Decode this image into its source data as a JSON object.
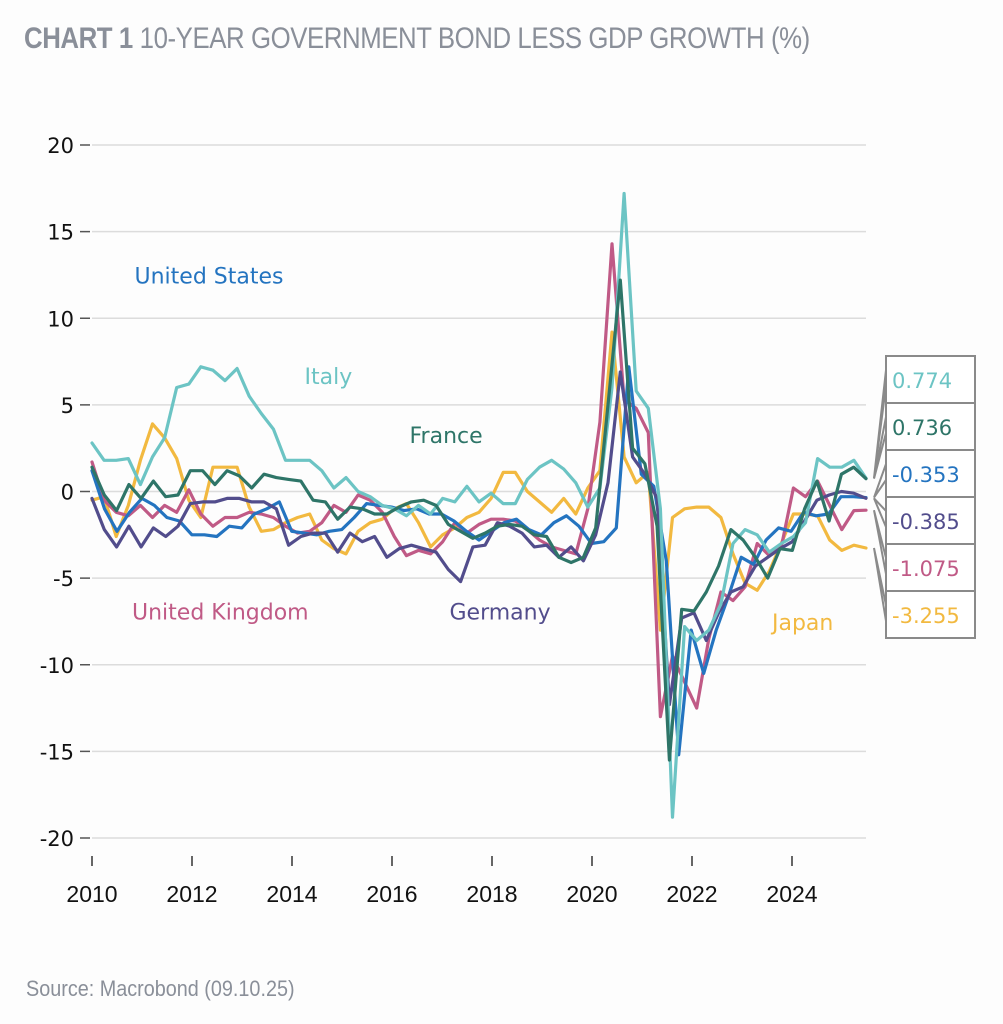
{
  "header": {
    "lead": "CHART 1",
    "title": "10-YEAR GOVERNMENT BOND LESS GDP GROWTH (%)"
  },
  "footer": {
    "source": "Source: Macrobond (09.10.25)"
  },
  "chart_data": {
    "type": "line",
    "title": "CHART 1 10-YEAR GOVERNMENT BOND LESS GDP GROWTH (%)",
    "xlabel": "",
    "ylabel": "%",
    "frequency": "quarterly",
    "x_start": 2010.0,
    "x_step": 0.25,
    "xlim": [
      2010,
      2025.5
    ],
    "ylim": [
      -20,
      20
    ],
    "yticks": [
      20,
      15,
      10,
      5,
      0,
      -5,
      -10,
      -15,
      -20
    ],
    "xticks": [
      2010,
      2012,
      2014,
      2016,
      2018,
      2020,
      2022,
      2024
    ],
    "grid": "horizontal",
    "series": [
      {
        "name": "Italy",
        "color": "#6cc4c4",
        "end_value": "0.774",
        "values": [
          2.8,
          1.8,
          1.8,
          1.9,
          0.4,
          2.0,
          3.1,
          6.0,
          6.2,
          7.2,
          7.0,
          6.4,
          7.1,
          5.5,
          4.5,
          3.6,
          1.8,
          1.8,
          1.8,
          1.2,
          0.2,
          0.8,
          0.0,
          -0.3,
          -0.8,
          -1.0,
          -1.4,
          -0.8,
          -1.3,
          -0.4,
          -0.6,
          0.3,
          -0.6,
          -0.1,
          -0.7,
          -0.7,
          0.7,
          1.4,
          1.8,
          1.3,
          0.5,
          -0.9,
          0.2,
          6.0,
          17.2,
          5.8,
          4.8,
          -1.0,
          -18.8,
          -7.8,
          -8.6,
          -8.0,
          -6.5,
          -3.0,
          -2.2,
          -2.5,
          -3.5,
          -3.0,
          -2.6,
          -1.8,
          1.9,
          1.4,
          1.4,
          1.8,
          0.77
        ]
      },
      {
        "name": "France",
        "color": "#2e7568",
        "end_value": "0.736",
        "values": [
          1.4,
          -0.2,
          -1.1,
          0.4,
          -0.4,
          0.6,
          -0.3,
          -0.2,
          1.2,
          1.2,
          0.4,
          1.2,
          0.9,
          0.2,
          1.0,
          0.8,
          0.7,
          0.6,
          -0.5,
          -0.6,
          -1.6,
          -0.9,
          -1.0,
          -1.3,
          -1.3,
          -0.9,
          -0.6,
          -0.5,
          -0.8,
          -1.9,
          -2.3,
          -2.7,
          -2.4,
          -2.0,
          -1.9,
          -2.0,
          -2.5,
          -2.6,
          -3.8,
          -4.1,
          -3.8,
          -2.1,
          5.0,
          12.2,
          2.5,
          1.6,
          -2.0,
          -15.5,
          -6.8,
          -6.9,
          -5.8,
          -4.3,
          -2.2,
          -2.8,
          -3.8,
          -5.0,
          -3.3,
          -3.4,
          -1.0,
          0.6,
          -1.7,
          1.0,
          1.4,
          0.74
        ]
      },
      {
        "name": "United States",
        "color": "#2474c0",
        "end_value": "-0.353",
        "values": [
          1.2,
          -1.0,
          -2.3,
          -1.2,
          -0.4,
          -0.8,
          -1.5,
          -1.7,
          -2.5,
          -2.5,
          -2.6,
          -2.0,
          -2.1,
          -1.3,
          -1.0,
          -0.6,
          -2.3,
          -2.4,
          -2.5,
          -2.3,
          -2.2,
          -1.5,
          -0.7,
          -0.8,
          -0.9,
          -1.1,
          -1.0,
          -1.3,
          -1.3,
          -1.7,
          -2.3,
          -2.8,
          -2.3,
          -1.8,
          -1.6,
          -2.2,
          -2.5,
          -1.8,
          -1.4,
          -2.0,
          -3.0,
          -2.9,
          -2.1,
          7.2,
          1.0,
          0.3,
          -4.0,
          -15.2,
          -8.0,
          -10.5,
          -8.0,
          -6.0,
          -3.8,
          -4.2,
          -2.8,
          -2.1,
          -2.3,
          -1.2,
          -1.4,
          -1.3,
          -0.3,
          -0.3,
          -0.35
        ]
      },
      {
        "name": "Germany",
        "color": "#524d8c",
        "end_value": "-0.385",
        "values": [
          -0.4,
          -2.2,
          -3.2,
          -2.0,
          -3.2,
          -2.1,
          -2.6,
          -2.0,
          -0.7,
          -0.6,
          -0.6,
          -0.4,
          -0.4,
          -0.6,
          -0.6,
          -1.0,
          -3.1,
          -2.6,
          -2.4,
          -2.4,
          -3.5,
          -2.4,
          -2.9,
          -2.6,
          -3.8,
          -3.3,
          -3.1,
          -3.3,
          -3.5,
          -4.5,
          -5.2,
          -3.2,
          -3.1,
          -1.8,
          -2.0,
          -2.4,
          -3.2,
          -3.1,
          -3.8,
          -3.2,
          -4.0,
          -2.5,
          0.5,
          6.9,
          2.0,
          1.0,
          -0.4,
          -12.3,
          -7.3,
          -7.0,
          -8.6,
          -7.0,
          -5.8,
          -5.5,
          -4.3,
          -3.8,
          -3.3,
          -2.9,
          -1.7,
          -0.5,
          -0.2,
          0.0,
          -0.1,
          -0.39
        ]
      },
      {
        "name": "United Kingdom",
        "color": "#c05a86",
        "end_value": "-1.075",
        "values": [
          1.7,
          -0.5,
          -1.2,
          -1.4,
          -0.8,
          -1.5,
          -0.8,
          -1.2,
          0.1,
          -1.3,
          -2.0,
          -1.5,
          -1.5,
          -1.2,
          -1.3,
          -1.5,
          -2.0,
          -2.4,
          -2.3,
          -1.8,
          -0.8,
          -1.2,
          -0.2,
          -0.5,
          -1.2,
          -2.6,
          -3.7,
          -3.4,
          -3.6,
          -2.9,
          -1.8,
          -2.4,
          -1.9,
          -1.6,
          -1.6,
          -1.7,
          -2.2,
          -2.8,
          -3.2,
          -3.4,
          -3.6,
          -1.0,
          4.0,
          14.3,
          5.3,
          4.8,
          3.4,
          -13.0,
          -9.5,
          -11.0,
          -12.5,
          -8.5,
          -5.8,
          -6.3,
          -5.5,
          -3.0,
          -3.7,
          -3.2,
          0.2,
          -0.3,
          0.6,
          -0.8,
          -2.2,
          -1.1,
          -1.08
        ]
      },
      {
        "name": "Japan",
        "color": "#f2b940",
        "end_value": "-3.255",
        "values": [
          -0.5,
          -0.3,
          -2.6,
          -0.8,
          1.8,
          3.9,
          3.1,
          1.9,
          -0.5,
          -1.5,
          1.4,
          1.4,
          1.4,
          -0.9,
          -2.3,
          -2.2,
          -1.8,
          -1.5,
          -1.3,
          -2.8,
          -3.3,
          -3.6,
          -2.3,
          -1.8,
          -1.6,
          -1.0,
          -0.7,
          -1.8,
          -3.2,
          -2.5,
          -2.1,
          -1.5,
          -1.2,
          -0.4,
          1.1,
          1.1,
          0.0,
          -0.6,
          -1.2,
          -0.4,
          -1.3,
          0.2,
          1.2,
          9.2,
          2.0,
          0.5,
          1.1,
          -8.0,
          -1.5,
          -1.0,
          -0.9,
          -0.9,
          -1.5,
          -3.6,
          -5.3,
          -5.7,
          -4.6,
          -3.0,
          -1.3,
          -1.3,
          -1.4,
          -2.8,
          -3.4,
          -3.1,
          -3.26
        ]
      }
    ],
    "annotations": [
      {
        "text": "United States",
        "series": "United States",
        "x": 2010.85,
        "y": 12.0
      },
      {
        "text": "Italy",
        "series": "Italy",
        "x": 2014.25,
        "y": 6.2
      },
      {
        "text": "France",
        "series": "France",
        "x": 2016.35,
        "y": 2.8
      },
      {
        "text": "United Kingdom",
        "series": "United Kingdom",
        "x": 2010.8,
        "y": -7.4
      },
      {
        "text": "Germany",
        "series": "Germany",
        "x": 2017.15,
        "y": -7.4
      },
      {
        "text": "Japan",
        "series": "Japan",
        "x": 2023.6,
        "y": -8.0
      }
    ],
    "legend": "end-of-line value boxes, right"
  }
}
